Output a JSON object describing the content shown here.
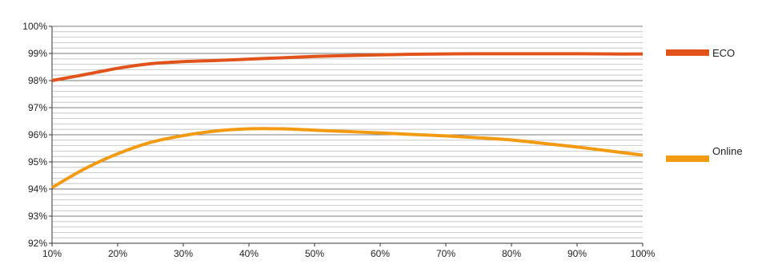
{
  "chart_data": {
    "type": "line",
    "title": "",
    "xlabel": "",
    "ylabel": "",
    "x_categories": [
      "10%",
      "20%",
      "30%",
      "40%",
      "50%",
      "60%",
      "70%",
      "80%",
      "90%",
      "100%"
    ],
    "x_values": [
      10,
      20,
      30,
      40,
      50,
      60,
      70,
      80,
      90,
      100
    ],
    "xlim": [
      10,
      100
    ],
    "ylim": [
      92,
      100
    ],
    "y_ticks": [
      92,
      93,
      94,
      95,
      96,
      97,
      98,
      99,
      100
    ],
    "y_tick_labels": [
      "92%",
      "93%",
      "94%",
      "95%",
      "96%",
      "97%",
      "98%",
      "99%",
      "100%"
    ],
    "minor_gridlines_per_major": 5,
    "grid": true,
    "legend_position": "right",
    "series": [
      {
        "name": "ECO",
        "color": "#E2531B",
        "x": [
          10,
          15,
          20,
          25,
          30,
          35,
          40,
          45,
          50,
          55,
          60,
          65,
          70,
          75,
          80,
          85,
          90,
          95,
          100
        ],
        "values": [
          98.0,
          98.22,
          98.45,
          98.62,
          98.7,
          98.74,
          98.79,
          98.84,
          98.89,
          98.92,
          98.95,
          98.97,
          98.98,
          98.99,
          98.99,
          98.99,
          98.99,
          98.98,
          98.98
        ]
      },
      {
        "name": "Online",
        "color": "#F29A12",
        "x": [
          10,
          15,
          20,
          25,
          30,
          35,
          40,
          45,
          50,
          55,
          60,
          65,
          70,
          75,
          80,
          85,
          90,
          95,
          100
        ],
        "values": [
          94.05,
          94.75,
          95.3,
          95.72,
          95.97,
          96.14,
          96.22,
          96.22,
          96.17,
          96.12,
          96.07,
          96.01,
          95.96,
          95.89,
          95.81,
          95.68,
          95.55,
          95.4,
          95.25
        ]
      }
    ]
  }
}
